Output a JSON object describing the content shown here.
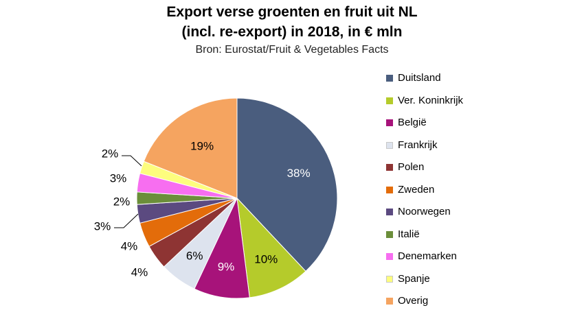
{
  "title_line1": "Export verse groenten en fruit uit NL",
  "title_line2": "(incl. re-export) in 2018, in € mln",
  "subtitle": "Bron: Eurostat/Fruit & Vegetables Facts",
  "chart_data": {
    "type": "pie",
    "title": "Export verse groenten en fruit uit NL (incl. re-export) in 2018, in € mln",
    "subtitle": "Bron: Eurostat/Fruit & Vegetables Facts",
    "legend_position": "right",
    "categories": [
      "Duitsland",
      "Ver. Koninkrijk",
      "België",
      "Frankrijk",
      "Polen",
      "Zweden",
      "Noorwegen",
      "Italië",
      "Denemarken",
      "Spanje",
      "Overig"
    ],
    "values": [
      38,
      10,
      9,
      6,
      4,
      4,
      3,
      2,
      3,
      2,
      19
    ],
    "labels": [
      "38%",
      "10%",
      "9%",
      "6%",
      "4%",
      "4%",
      "3%",
      "2%",
      "3%",
      "2%",
      "19%"
    ],
    "colors": [
      "#4a5d7e",
      "#b5cb2b",
      "#a7137a",
      "#dde3ee",
      "#8e3433",
      "#e36c0a",
      "#5b4a80",
      "#6b8e3a",
      "#f76ef0",
      "#fdfd7e",
      "#f5a460"
    ],
    "label_colors": [
      "#ffffff",
      "#000000",
      "#ffffff",
      "#000000",
      "#000000",
      "#000000",
      "#000000",
      "#000000",
      "#000000",
      "#000000",
      "#000000"
    ]
  }
}
